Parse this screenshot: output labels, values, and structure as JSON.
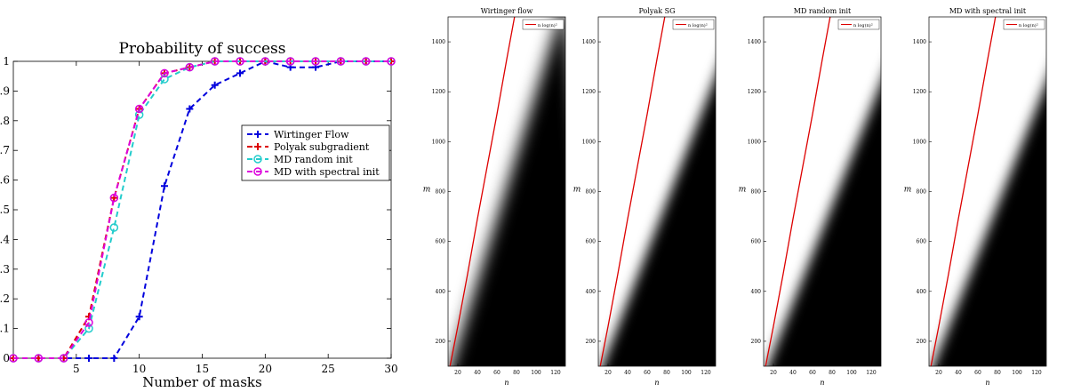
{
  "chart_data": [
    {
      "type": "line",
      "title": "Probability of success",
      "xlabel": "Number of masks",
      "ylabel": "",
      "xlim": [
        0,
        30
      ],
      "ylim": [
        0,
        1
      ],
      "x_ticks": [
        5,
        10,
        15,
        20,
        25,
        30
      ],
      "y_ticks": [
        0,
        0.1,
        0.2,
        0.3,
        0.4,
        0.5,
        0.6,
        0.7,
        0.8,
        0.9,
        1.0
      ],
      "legend_placement": "right",
      "series": [
        {
          "name": "Wirtinger Flow",
          "color": "#0000dd",
          "marker": "plus",
          "x": [
            0,
            2,
            4,
            6,
            8,
            10,
            12,
            14,
            16,
            18,
            20,
            22,
            24,
            26,
            28,
            30
          ],
          "y": [
            0,
            0,
            0,
            0,
            0,
            0.14,
            0.58,
            0.84,
            0.92,
            0.96,
            1.0,
            0.98,
            0.98,
            1.0,
            1.0,
            1.0
          ]
        },
        {
          "name": "Polyak subgradient",
          "color": "#dd0000",
          "marker": "plus",
          "x": [
            0,
            2,
            4,
            6,
            8,
            10,
            12,
            14,
            16,
            18,
            20,
            22,
            24,
            26,
            28,
            30
          ],
          "y": [
            0,
            0,
            0,
            0.14,
            0.54,
            0.84,
            0.96,
            0.98,
            1.0,
            1.0,
            1.0,
            1.0,
            1.0,
            1.0,
            1.0,
            1.0
          ]
        },
        {
          "name": "MD random init",
          "color": "#22cccc",
          "marker": "circle",
          "x": [
            0,
            2,
            4,
            6,
            8,
            10,
            12,
            14,
            16,
            18,
            20,
            22,
            24,
            26,
            28,
            30
          ],
          "y": [
            0,
            0,
            0,
            0.1,
            0.44,
            0.82,
            0.94,
            0.98,
            1.0,
            1.0,
            1.0,
            1.0,
            1.0,
            1.0,
            1.0,
            1.0
          ]
        },
        {
          "name": "MD with spectral init",
          "color": "#dd00dd",
          "marker": "circle",
          "x": [
            0,
            2,
            4,
            6,
            8,
            10,
            12,
            14,
            16,
            18,
            20,
            22,
            24,
            26,
            28,
            30
          ],
          "y": [
            0,
            0,
            0,
            0.12,
            0.54,
            0.84,
            0.96,
            0.98,
            1.0,
            1.0,
            1.0,
            1.0,
            1.0,
            1.0,
            1.0,
            1.0
          ]
        }
      ]
    },
    {
      "type": "heatmap",
      "title": "Wirtinger flow",
      "xlabel": "n",
      "ylabel": "m",
      "xlim": [
        10,
        130
      ],
      "ylim": [
        100,
        1500
      ],
      "x_ticks": [
        20,
        40,
        60,
        80,
        100,
        120
      ],
      "y_ticks": [
        200,
        400,
        600,
        800,
        1000,
        1200,
        1400
      ],
      "legend": "n log(n)²",
      "legend_placement": "top-right",
      "curve": {
        "color": "#dd0000",
        "n": [
          12,
          20,
          30,
          40,
          50,
          60,
          70,
          78
        ],
        "m": [
          100,
          260,
          470,
          690,
          900,
          1110,
          1330,
          1500
        ]
      },
      "boundary": {
        "n": [
          12,
          130
        ],
        "m": [
          90,
          1580
        ]
      },
      "blur": 9
    },
    {
      "type": "heatmap",
      "title": "Polyak SG",
      "xlabel": "n",
      "ylabel": "m",
      "xlim": [
        10,
        130
      ],
      "ylim": [
        100,
        1500
      ],
      "x_ticks": [
        20,
        40,
        60,
        80,
        100,
        120
      ],
      "y_ticks": [
        200,
        400,
        600,
        800,
        1000,
        1200,
        1400
      ],
      "legend": "n log(n)²",
      "legend_placement": "top-right",
      "curve": {
        "color": "#dd0000",
        "n": [
          12,
          20,
          30,
          40,
          50,
          60,
          70,
          78
        ],
        "m": [
          100,
          260,
          470,
          690,
          900,
          1110,
          1330,
          1500
        ]
      },
      "boundary": {
        "n": [
          14,
          150
        ],
        "m": [
          100,
          1460
        ]
      },
      "blur": 7
    },
    {
      "type": "heatmap",
      "title": "MD random init",
      "xlabel": "n",
      "ylabel": "m",
      "xlim": [
        10,
        130
      ],
      "ylim": [
        100,
        1500
      ],
      "x_ticks": [
        20,
        40,
        60,
        80,
        100,
        120
      ],
      "y_ticks": [
        200,
        400,
        600,
        800,
        1000,
        1200,
        1400
      ],
      "legend": "n log(n)²",
      "legend_placement": "top-right",
      "curve": {
        "color": "#dd0000",
        "n": [
          12,
          20,
          30,
          40,
          50,
          60,
          70,
          78
        ],
        "m": [
          100,
          260,
          470,
          690,
          900,
          1110,
          1330,
          1500
        ]
      },
      "boundary": {
        "n": [
          14,
          150
        ],
        "m": [
          100,
          1430
        ]
      },
      "blur": 7
    },
    {
      "type": "heatmap",
      "title": "MD with spectral init",
      "xlabel": "n",
      "ylabel": "m",
      "xlim": [
        10,
        130
      ],
      "ylim": [
        100,
        1500
      ],
      "x_ticks": [
        20,
        40,
        60,
        80,
        100,
        120
      ],
      "y_ticks": [
        200,
        400,
        600,
        800,
        1000,
        1200,
        1400
      ],
      "legend": "n log(n)²",
      "legend_placement": "top-right",
      "curve": {
        "color": "#dd0000",
        "n": [
          12,
          20,
          30,
          40,
          50,
          60,
          70,
          78
        ],
        "m": [
          100,
          260,
          470,
          690,
          900,
          1110,
          1330,
          1500
        ]
      },
      "boundary": {
        "n": [
          14,
          150
        ],
        "m": [
          100,
          1430
        ]
      },
      "blur": 7
    }
  ]
}
